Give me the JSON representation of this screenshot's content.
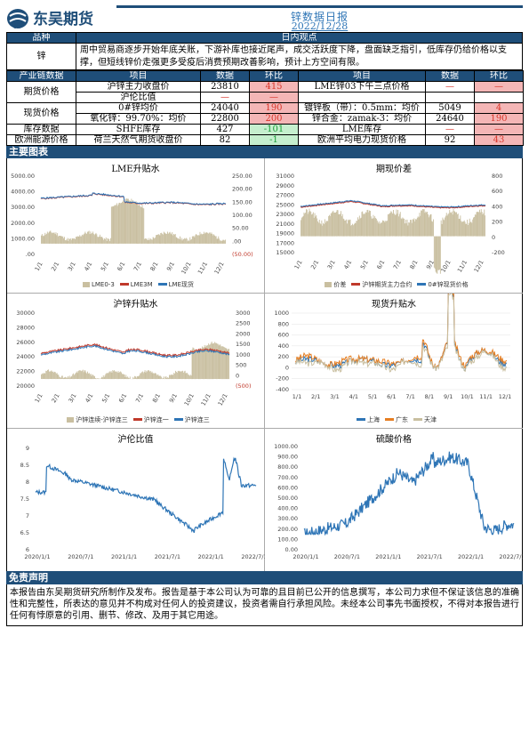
{
  "header": {
    "logo_text": "东吴期货",
    "logo_sub": "SCF",
    "title": "锌数据日报",
    "date": "2022/12/28"
  },
  "view": {
    "col1": "品种",
    "col2": "日内观点",
    "variety": "锌",
    "text": "周中贸易商逐步开始年底关账，下游补库也接近尾声，成交活跃度下降，盘面缺乏指引，低库存仍给价格以支撑，但短线锌价走强更多受疫后消费预期改善影响，预计上方空间有限。"
  },
  "chain": {
    "headers": [
      "产业链数据",
      "项目",
      "数据",
      "环比",
      "项目",
      "数据",
      "环比"
    ],
    "rows": [
      {
        "group": "期货价格",
        "item1": "沪锌主力收盘价",
        "val1": "23810",
        "chg1": "415",
        "item2": "LME锌03下午三点价格",
        "val2": "—",
        "chg2": "—"
      },
      {
        "group": "",
        "item1": "沪伦比值",
        "val1": "—",
        "chg1": "—",
        "item2": "",
        "val2": "",
        "chg2": ""
      },
      {
        "group": "现货价格",
        "item1": "0#锌均价",
        "val1": "24040",
        "chg1": "190",
        "item2": "镀锌板（带）：0.5mm：均价",
        "val2": "5049",
        "chg2": "4"
      },
      {
        "group": "",
        "item1": "氧化锌：99.70%：均价",
        "val1": "22800",
        "chg1": "200",
        "item2": "锌合金：zamak-3：均价",
        "val2": "24640",
        "chg2": "190"
      },
      {
        "group": "库存数据",
        "item1": "SHFE库存",
        "val1": "427",
        "chg1": "-101",
        "item2": "LME库存",
        "val2": "—",
        "chg2": "—"
      },
      {
        "group": "欧洲能源价格",
        "item1": "荷兰天然气期货收盘价",
        "val1": "82",
        "chg1": "-1",
        "item2": "欧洲平均电力现货价格",
        "val2": "92",
        "chg2": "43"
      }
    ]
  },
  "section_title": "主要图表",
  "charts": {
    "lme_spread": {
      "title": "LME升贴水",
      "left_ticks": [
        "5000.00",
        "4000.00",
        "3000.00",
        "2000.00",
        "1000.00",
        ".00"
      ],
      "right_ticks": [
        "250.00",
        "200.00",
        "150.00",
        "100.00",
        "50.00",
        ".00",
        "(50.00)"
      ],
      "x_ticks": [
        "1/1",
        "2/1",
        "3/1",
        "4/1",
        "5/1",
        "6/1",
        "7/1",
        "8/1",
        "9/1",
        "10/1",
        "11/1",
        "12/1"
      ],
      "legend": [
        "LME0-3",
        "LME3M",
        "LME现货"
      ],
      "colors": [
        "#c9bfa0",
        "#c0392b",
        "#2e75b6"
      ]
    },
    "futures_spot": {
      "title": "期现价差",
      "left_ticks": [
        "31000",
        "29000",
        "27000",
        "25000",
        "23000",
        "21000",
        "19000",
        "17000",
        "15000"
      ],
      "right_ticks": [
        "800",
        "600",
        "400",
        "200",
        "0",
        "-200"
      ],
      "x_ticks": [
        "1/1",
        "2/1",
        "3/1",
        "4/1",
        "5/1",
        "6/1",
        "7/1",
        "8/1",
        "9/1",
        "10/1",
        "11/1",
        "12/1"
      ],
      "legend": [
        "价差",
        "沪锌期货主力合约",
        "0#锌现货价格"
      ],
      "colors": [
        "#c9bfa0",
        "#c0392b",
        "#2e75b6"
      ]
    },
    "shfe_spread": {
      "title": "沪锌升贴水",
      "left_ticks": [
        "30000",
        "28000",
        "26000",
        "24000",
        "22000",
        "20000"
      ],
      "right_ticks": [
        "3000",
        "2500",
        "2000",
        "1500",
        "1000",
        "500",
        "0",
        "(500)"
      ],
      "x_ticks": [
        "1/1",
        "2/1",
        "3/1",
        "4/1",
        "5/1",
        "6/1",
        "7/1",
        "8/1",
        "9/1",
        "10/1",
        "11/1",
        "12/1"
      ],
      "legend": [
        "沪锌连续-沪锌连三",
        "沪锌连一",
        "沪锌连三"
      ],
      "colors": [
        "#c9bfa0",
        "#c0392b",
        "#2e75b6"
      ]
    },
    "spot_spread": {
      "title": "现货升贴水",
      "left_ticks": [
        "1000",
        "800",
        "600",
        "400",
        "200",
        "0",
        "-200",
        "-400"
      ],
      "x_ticks": [
        "1/1",
        "2/1",
        "3/1",
        "4/1",
        "5/1",
        "6/1",
        "7/1",
        "8/1",
        "9/1",
        "10/1",
        "11/1",
        "12/1"
      ],
      "legend": [
        "上海",
        "广东",
        "天津"
      ],
      "colors": [
        "#2e75b6",
        "#e67e22",
        "#c9bfa0"
      ]
    },
    "ratio": {
      "title": "沪伦比值",
      "left_ticks": [
        "9",
        "8.5",
        "8",
        "7.5",
        "7",
        "6.5",
        "6"
      ],
      "x_ticks": [
        "2020/1/1",
        "2020/7/1",
        "2021/1/1",
        "2021/7/1",
        "2022/1/1",
        "2022/7/1"
      ]
    },
    "sulfuric": {
      "title": "硫酸价格",
      "left_ticks": [
        "1000.00",
        "900.00",
        "800.00",
        "700.00",
        "600.00",
        "500.00",
        "400.00",
        "300.00",
        "200.00",
        "100.00",
        "0.00"
      ],
      "x_ticks": [
        "2020/1/1",
        "2020/7/1",
        "2021/1/1",
        "2021/7/1",
        "2022/1/1",
        "2022/7/1"
      ]
    }
  },
  "disclaimer": {
    "title": "免责声明",
    "text": "本报告由东吴期货研究所制作及发布。报告是基于本公司认为可靠的且目前已公开的信息撰写，本公司力求但不保证该信息的准确性和完整性，所表达的意见并不构成对任何人的投资建议，投资者需自行承担风险。未经本公司事先书面授权，不得对本报告进行任何有悖原意的引用、删节、修改、及用于其它用途。"
  }
}
